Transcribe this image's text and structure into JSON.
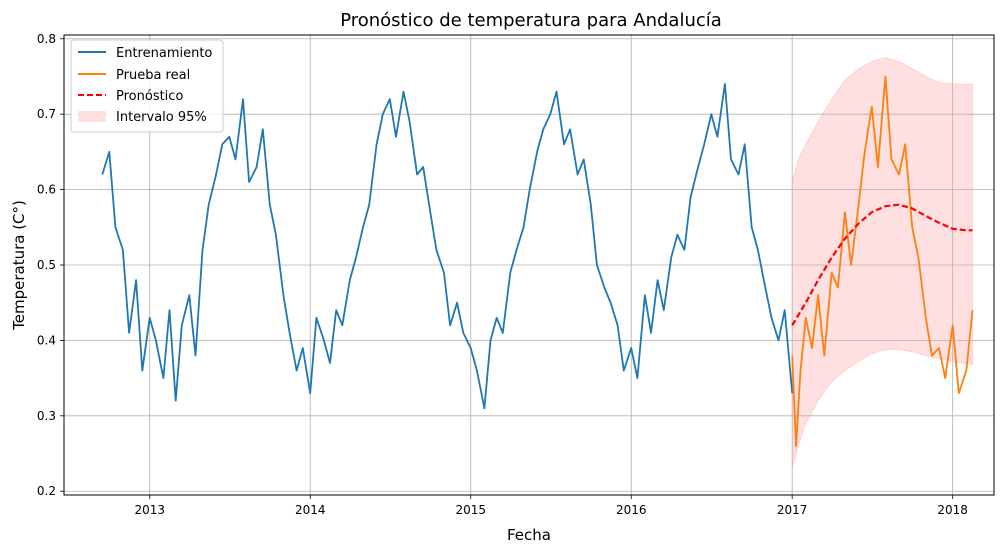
{
  "chart_data": {
    "type": "line",
    "title": "Pronóstico de temperatura para Andalucía",
    "xlabel": "Fecha",
    "ylabel": "Temperatura (C°)",
    "x_ticks": [
      "2013",
      "2014",
      "2015",
      "2016",
      "2017",
      "2018"
    ],
    "y_ticks": [
      "0.2",
      "0.3",
      "0.4",
      "0.5",
      "0.6",
      "0.7",
      "0.8"
    ],
    "xlim": [
      "2012-06-20",
      "2018-04-05"
    ],
    "ylim": [
      0.195,
      0.805
    ],
    "grid": true,
    "legend_position": "top-left",
    "colors": {
      "train": "#1f77b4",
      "test": "#ff7f0e",
      "forecast": "#ff0000",
      "interval": "#ff9999"
    },
    "series": [
      {
        "name": "Entrenamiento",
        "style": "solid",
        "x": [
          "2012-09-15",
          "2012-10-01",
          "2012-10-15",
          "2012-11-01",
          "2012-11-15",
          "2012-12-01",
          "2012-12-15",
          "2013-01-01",
          "2013-01-15",
          "2013-02-01",
          "2013-02-15",
          "2013-03-01",
          "2013-03-15",
          "2013-04-01",
          "2013-04-15",
          "2013-05-01",
          "2013-05-15",
          "2013-06-01",
          "2013-06-15",
          "2013-07-01",
          "2013-07-15",
          "2013-08-01",
          "2013-08-15",
          "2013-09-01",
          "2013-09-15",
          "2013-10-01",
          "2013-10-15",
          "2013-11-01",
          "2013-11-15",
          "2013-12-01",
          "2013-12-15",
          "2014-01-01",
          "2014-01-15",
          "2014-02-01",
          "2014-02-15",
          "2014-03-01",
          "2014-03-15",
          "2014-04-01",
          "2014-04-15",
          "2014-05-01",
          "2014-05-15",
          "2014-06-01",
          "2014-06-15",
          "2014-07-01",
          "2014-07-15",
          "2014-08-01",
          "2014-08-15",
          "2014-09-01",
          "2014-09-15",
          "2014-10-01",
          "2014-10-15",
          "2014-11-01",
          "2014-11-15",
          "2014-12-01",
          "2014-12-15",
          "2015-01-01",
          "2015-01-15",
          "2015-02-01",
          "2015-02-15",
          "2015-03-01",
          "2015-03-15",
          "2015-04-01",
          "2015-04-15",
          "2015-05-01",
          "2015-05-15",
          "2015-06-01",
          "2015-06-15",
          "2015-07-01",
          "2015-07-15",
          "2015-08-01",
          "2015-08-15",
          "2015-09-01",
          "2015-09-15",
          "2015-10-01",
          "2015-10-15",
          "2015-11-01",
          "2015-11-15",
          "2015-12-01",
          "2015-12-15",
          "2016-01-01",
          "2016-01-15",
          "2016-02-01",
          "2016-02-15",
          "2016-03-01",
          "2016-03-15",
          "2016-04-01",
          "2016-04-15",
          "2016-05-01",
          "2016-05-15",
          "2016-06-01",
          "2016-06-15",
          "2016-07-01",
          "2016-07-15",
          "2016-08-01",
          "2016-08-15",
          "2016-09-01",
          "2016-09-15",
          "2016-10-01",
          "2016-10-15",
          "2016-11-01",
          "2016-11-15",
          "2016-12-01",
          "2016-12-15",
          "2017-01-01"
        ],
        "values": [
          0.62,
          0.65,
          0.55,
          0.52,
          0.41,
          0.48,
          0.36,
          0.43,
          0.4,
          0.35,
          0.44,
          0.32,
          0.42,
          0.46,
          0.38,
          0.52,
          0.58,
          0.62,
          0.66,
          0.67,
          0.64,
          0.72,
          0.61,
          0.63,
          0.68,
          0.58,
          0.54,
          0.46,
          0.41,
          0.36,
          0.39,
          0.33,
          0.43,
          0.4,
          0.37,
          0.44,
          0.42,
          0.48,
          0.51,
          0.55,
          0.58,
          0.66,
          0.7,
          0.72,
          0.67,
          0.73,
          0.69,
          0.62,
          0.63,
          0.57,
          0.52,
          0.49,
          0.42,
          0.45,
          0.41,
          0.39,
          0.36,
          0.31,
          0.4,
          0.43,
          0.41,
          0.49,
          0.52,
          0.55,
          0.6,
          0.65,
          0.68,
          0.7,
          0.73,
          0.66,
          0.68,
          0.62,
          0.64,
          0.58,
          0.5,
          0.47,
          0.45,
          0.42,
          0.36,
          0.39,
          0.35,
          0.46,
          0.41,
          0.48,
          0.44,
          0.51,
          0.54,
          0.52,
          0.59,
          0.63,
          0.66,
          0.7,
          0.67,
          0.74,
          0.64,
          0.62,
          0.66,
          0.55,
          0.52,
          0.47,
          0.43,
          0.4,
          0.44,
          0.33
        ]
      },
      {
        "name": "Prueba real",
        "style": "solid",
        "x": [
          "2017-01-01",
          "2017-01-10",
          "2017-01-20",
          "2017-02-01",
          "2017-02-15",
          "2017-03-01",
          "2017-03-15",
          "2017-04-01",
          "2017-04-15",
          "2017-05-01",
          "2017-05-15",
          "2017-06-01",
          "2017-06-15",
          "2017-07-01",
          "2017-07-15",
          "2017-08-01",
          "2017-08-15",
          "2017-09-01",
          "2017-09-15",
          "2017-10-01",
          "2017-10-15",
          "2017-11-01",
          "2017-11-15",
          "2017-12-01",
          "2017-12-15",
          "2018-01-01",
          "2018-01-15",
          "2018-02-01",
          "2018-02-15"
        ],
        "values": [
          0.38,
          0.26,
          0.36,
          0.43,
          0.39,
          0.46,
          0.38,
          0.49,
          0.47,
          0.57,
          0.5,
          0.58,
          0.65,
          0.71,
          0.63,
          0.75,
          0.64,
          0.62,
          0.66,
          0.55,
          0.51,
          0.43,
          0.38,
          0.39,
          0.35,
          0.42,
          0.33,
          0.36,
          0.44
        ]
      },
      {
        "name": "Pronóstico",
        "style": "dashed",
        "x": [
          "2017-01-01",
          "2017-02-01",
          "2017-03-01",
          "2017-04-01",
          "2017-05-01",
          "2017-06-01",
          "2017-07-01",
          "2017-08-01",
          "2017-09-01",
          "2017-10-01",
          "2017-11-01",
          "2017-12-01",
          "2018-01-01",
          "2018-02-01",
          "2018-02-15"
        ],
        "values": [
          0.42,
          0.45,
          0.48,
          0.51,
          0.535,
          0.555,
          0.57,
          0.578,
          0.58,
          0.575,
          0.565,
          0.556,
          0.548,
          0.546,
          0.546
        ]
      }
    ],
    "interval": {
      "name": "Intervalo 95%",
      "x": [
        "2017-01-01",
        "2017-01-15",
        "2017-02-01",
        "2017-03-01",
        "2017-04-01",
        "2017-05-01",
        "2017-06-01",
        "2017-07-01",
        "2017-08-01",
        "2017-09-01",
        "2017-10-01",
        "2017-11-01",
        "2017-12-01",
        "2018-01-01",
        "2018-02-15"
      ],
      "lower": [
        0.23,
        0.26,
        0.29,
        0.32,
        0.345,
        0.36,
        0.372,
        0.382,
        0.388,
        0.388,
        0.385,
        0.38,
        0.376,
        0.372,
        0.368
      ],
      "upper": [
        0.61,
        0.64,
        0.66,
        0.69,
        0.72,
        0.745,
        0.76,
        0.77,
        0.775,
        0.77,
        0.76,
        0.75,
        0.742,
        0.74,
        0.74
      ]
    }
  }
}
